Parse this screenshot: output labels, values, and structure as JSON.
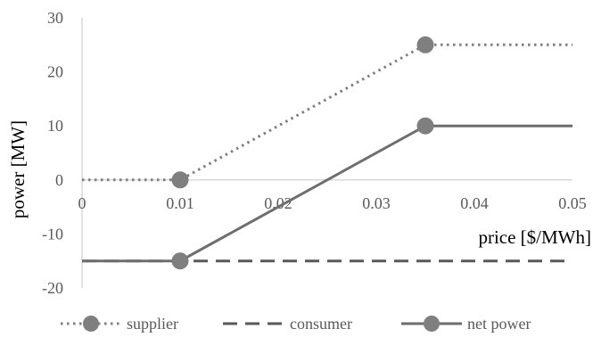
{
  "chart_data": {
    "type": "line",
    "xlabel": "price [$/MWh]",
    "ylabel": "power [MW]",
    "xlim": [
      0,
      0.05
    ],
    "ylim": [
      -20,
      30
    ],
    "x_ticks": [
      "0",
      "0.01",
      "0.02",
      "0.03",
      "0.04",
      "0.05"
    ],
    "y_ticks": [
      "30",
      "20",
      "10",
      "0",
      "-10",
      "-20"
    ],
    "grid": false,
    "legend_position": "bottom",
    "series": [
      {
        "name": "supplier",
        "style": "dotted",
        "color": "#7f7f7f",
        "x": [
          0,
          0.01,
          0.035,
          0.05
        ],
        "y": [
          0,
          0,
          25,
          25
        ],
        "markers": [
          1,
          2
        ]
      },
      {
        "name": "consumer",
        "style": "dashed",
        "color": "#595959",
        "x": [
          0,
          0.05
        ],
        "y": [
          -15,
          -15
        ],
        "markers": []
      },
      {
        "name": "net power",
        "style": "solid",
        "color": "#6e6e6e",
        "x": [
          0,
          0.01,
          0.035,
          0.05
        ],
        "y": [
          -15,
          -15,
          10,
          10
        ],
        "markers": [
          1,
          2
        ]
      }
    ]
  }
}
